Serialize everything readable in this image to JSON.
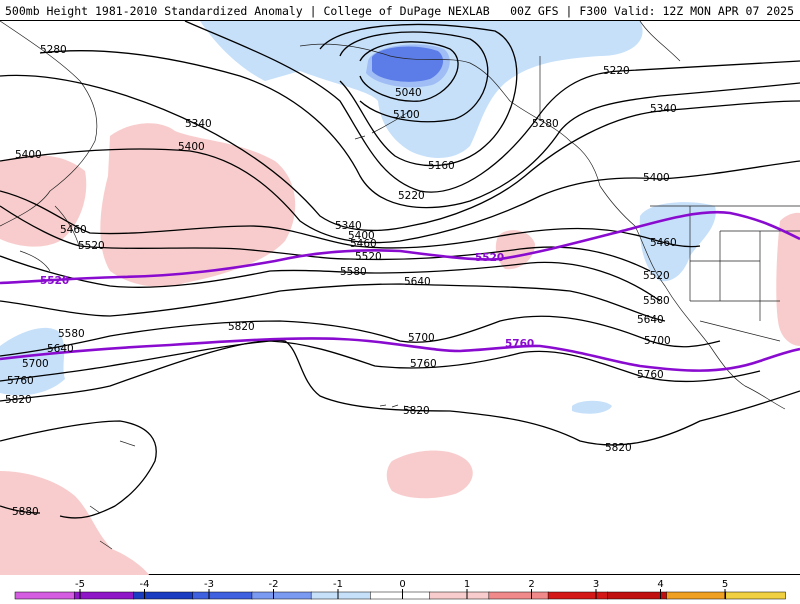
{
  "header": {
    "left": "500mb Height 1981-2010 Standardized Anomaly | College of DuPage NEXLAB",
    "right": "00Z GFS | F300 Valid: 12Z MON APR 07 2025"
  },
  "map": {
    "anomaly_colors": {
      "neg3": "#3f61e0",
      "neg2": "#7a99f0",
      "neg1": "#c6e0fa",
      "pos1": "#f8cccc"
    },
    "contour_labels": [
      {
        "id": "c5280a",
        "text": "5280"
      },
      {
        "id": "c5400a",
        "text": "5400"
      },
      {
        "id": "c5340a",
        "text": "5340"
      },
      {
        "id": "c5400b",
        "text": "5400"
      },
      {
        "id": "c5460a",
        "text": "5460"
      },
      {
        "id": "c5520a",
        "text": "5520"
      },
      {
        "id": "c5040",
        "text": "5040"
      },
      {
        "id": "c5100",
        "text": "5100"
      },
      {
        "id": "c5160",
        "text": "5160"
      },
      {
        "id": "c5220a",
        "text": "5220"
      },
      {
        "id": "c5220b",
        "text": "5220"
      },
      {
        "id": "c5280b",
        "text": "5280"
      },
      {
        "id": "c5340b",
        "text": "5340"
      },
      {
        "id": "c5340c",
        "text": "5340"
      },
      {
        "id": "c5400c",
        "text": "5400"
      },
      {
        "id": "c5460b",
        "text": "5460"
      },
      {
        "id": "c5520b",
        "text": "5520"
      },
      {
        "id": "c5580a",
        "text": "5580"
      },
      {
        "id": "c5640a",
        "text": "5640"
      },
      {
        "id": "c5400d",
        "text": "5400"
      },
      {
        "id": "c5460c",
        "text": "5460"
      },
      {
        "id": "c5520c",
        "text": "5520"
      },
      {
        "id": "c5580b",
        "text": "5580"
      },
      {
        "id": "c5640b",
        "text": "5640"
      },
      {
        "id": "c5700a",
        "text": "5700"
      },
      {
        "id": "c5700b",
        "text": "5700"
      },
      {
        "id": "c5760a",
        "text": "5760"
      },
      {
        "id": "c5760b",
        "text": "5760"
      },
      {
        "id": "c5820a",
        "text": "5820"
      },
      {
        "id": "c5820b",
        "text": "5820"
      },
      {
        "id": "c5820c",
        "text": "5820"
      },
      {
        "id": "c5580c",
        "text": "5580"
      },
      {
        "id": "c5640c",
        "text": "5640"
      },
      {
        "id": "c5700c",
        "text": "5700"
      },
      {
        "id": "c5760c",
        "text": "5760"
      },
      {
        "id": "c5820d",
        "text": "5820"
      },
      {
        "id": "c5880",
        "text": "5880"
      }
    ],
    "thick_contours": [
      {
        "id": "t5520",
        "text": "5520",
        "color": "#8a0bd0"
      },
      {
        "id": "t5520b",
        "text": "5520",
        "color": "#8a0bd0"
      },
      {
        "id": "t5760",
        "text": "5760",
        "color": "#8a0bd0"
      }
    ]
  },
  "colorbar": {
    "ticks": [
      "-5",
      "-4",
      "-3",
      "-2",
      "-1",
      "0",
      "1",
      "2",
      "3",
      "4",
      "5"
    ],
    "colors": [
      "#d45ce0",
      "#8f17c8",
      "#1a3cc0",
      "#3f61e0",
      "#7a99f0",
      "#c6e0fa",
      "#ffffff",
      "#f8cccc",
      "#f08a8a",
      "#d41818",
      "#c01010",
      "#f0a020",
      "#f0d040"
    ]
  }
}
